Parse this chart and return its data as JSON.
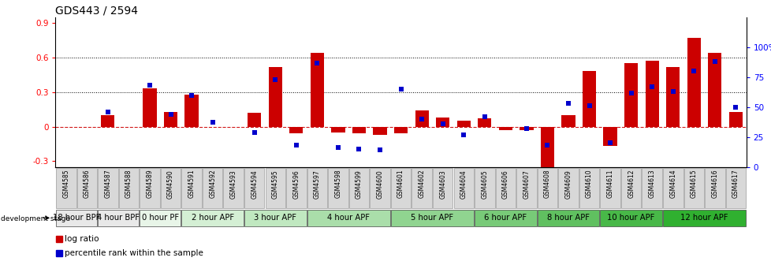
{
  "title": "GDS443 / 2594",
  "samples": [
    "GSM4585",
    "GSM4586",
    "GSM4587",
    "GSM4588",
    "GSM4589",
    "GSM4590",
    "GSM4591",
    "GSM4592",
    "GSM4593",
    "GSM4594",
    "GSM4595",
    "GSM4596",
    "GSM4597",
    "GSM4598",
    "GSM4599",
    "GSM4600",
    "GSM4601",
    "GSM4602",
    "GSM4603",
    "GSM4604",
    "GSM4605",
    "GSM4606",
    "GSM4607",
    "GSM4608",
    "GSM4609",
    "GSM4610",
    "GSM4611",
    "GSM4612",
    "GSM4613",
    "GSM4614",
    "GSM4615",
    "GSM4616",
    "GSM4617"
  ],
  "log_ratio": [
    0.0,
    0.0,
    0.1,
    0.0,
    0.33,
    0.13,
    0.28,
    0.0,
    0.0,
    0.12,
    0.52,
    -0.06,
    0.64,
    -0.05,
    -0.06,
    -0.07,
    -0.06,
    0.14,
    0.08,
    0.05,
    0.07,
    -0.03,
    -0.03,
    -0.36,
    0.1,
    0.48,
    -0.17,
    0.55,
    0.57,
    0.52,
    0.77,
    0.64,
    0.13
  ],
  "percentile": [
    -1,
    -1,
    46,
    -1,
    68,
    44,
    60,
    37,
    -1,
    29,
    73,
    18,
    87,
    16,
    15,
    14,
    65,
    40,
    36,
    27,
    42,
    -1,
    32,
    18,
    53,
    51,
    20,
    62,
    67,
    63,
    80,
    88,
    50
  ],
  "stages": [
    {
      "label": "18 hour BPF",
      "start": 0,
      "end": 1,
      "color": "#e8e8e8"
    },
    {
      "label": "4 hour BPF",
      "start": 2,
      "end": 3,
      "color": "#e8e8e8"
    },
    {
      "label": "0 hour PF",
      "start": 4,
      "end": 5,
      "color": "#e8f5e8"
    },
    {
      "label": "2 hour APF",
      "start": 6,
      "end": 8,
      "color": "#d4efd4"
    },
    {
      "label": "3 hour APF",
      "start": 9,
      "end": 11,
      "color": "#c0e8c0"
    },
    {
      "label": "4 hour APF",
      "start": 12,
      "end": 15,
      "color": "#aadeaa"
    },
    {
      "label": "5 hour APF",
      "start": 16,
      "end": 19,
      "color": "#90d490"
    },
    {
      "label": "6 hour APF",
      "start": 20,
      "end": 22,
      "color": "#78ca78"
    },
    {
      "label": "8 hour APF",
      "start": 23,
      "end": 25,
      "color": "#60c060"
    },
    {
      "label": "10 hour APF",
      "start": 26,
      "end": 28,
      "color": "#48b848"
    },
    {
      "label": "12 hour APF",
      "start": 29,
      "end": 32,
      "color": "#30b030"
    }
  ],
  "ylim_left": [
    -0.35,
    0.95
  ],
  "ylim_right": [
    0,
    125
  ],
  "bar_color": "#cc0000",
  "dot_color": "#0000cc",
  "title_fontsize": 10,
  "stage_fontsize": 7.5
}
